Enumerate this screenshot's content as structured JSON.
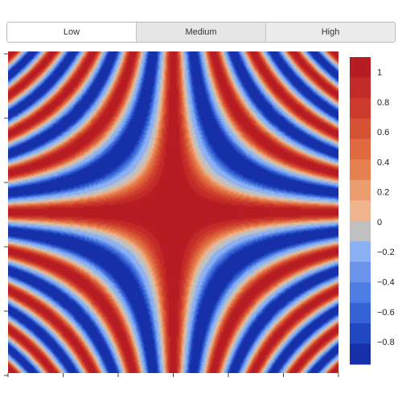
{
  "buttons": [
    {
      "label": "Low",
      "state": "normal"
    },
    {
      "label": "Medium",
      "state": "pressed"
    },
    {
      "label": "High",
      "state": "active"
    }
  ],
  "chart_data": {
    "type": "heatmap",
    "subtype": "filled-contour",
    "title": "",
    "xlabel": "",
    "ylabel": "",
    "value_range": [
      -0.9,
      1.1
    ],
    "colorbar": {
      "levels": [
        -0.9,
        -0.8,
        -0.7,
        -0.6,
        -0.5,
        -0.4,
        -0.3,
        -0.2,
        -0.1,
        0.0,
        0.2,
        0.3,
        0.4,
        0.5,
        0.6,
        0.7,
        0.8,
        0.9,
        1.0,
        1.1
      ],
      "colors": [
        "#1530a8",
        "#2147c2",
        "#3563d6",
        "#4e7ee4",
        "#6b95ec",
        "#8bb0f3",
        "#c0c0c0",
        "#f0b48e",
        "#ec9d70",
        "#e6804f",
        "#df6a40",
        "#d65234",
        "#cd3b2c",
        "#c22b27",
        "#b81c23"
      ],
      "tick_labels": [
        "1",
        "0.8",
        "0.6",
        "0.4",
        "0.2",
        "0",
        "−0.2",
        "−0.4",
        "−0.6",
        "−0.8"
      ],
      "tick_values": [
        1,
        0.8,
        0.6,
        0.4,
        0.2,
        0,
        -0.2,
        -0.4,
        -0.6,
        -0.8
      ]
    },
    "x_ticks": 7,
    "y_ticks": 6,
    "grid": false,
    "legend": "right"
  }
}
